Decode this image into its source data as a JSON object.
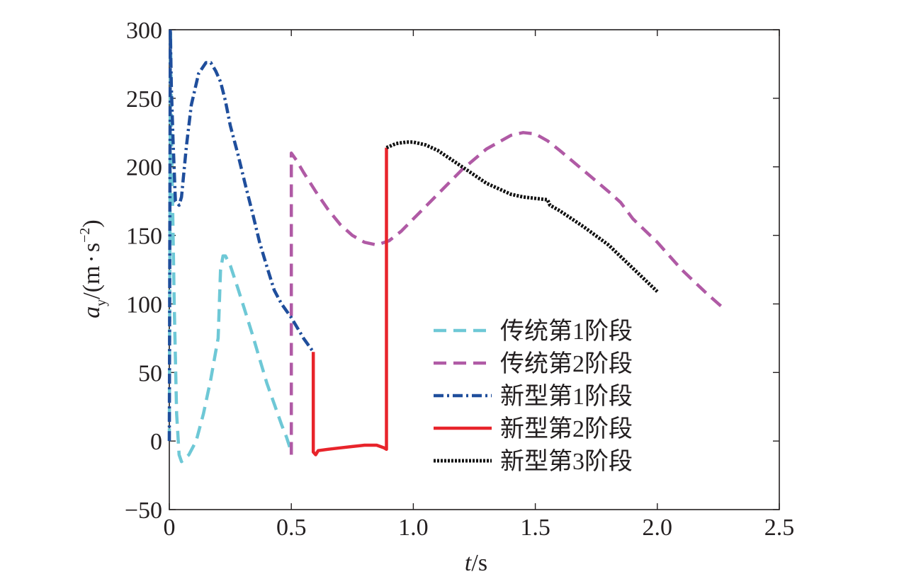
{
  "chart_data": {
    "type": "line",
    "title": "",
    "xlabel": "t/s",
    "ylabel": "a_y/(m·s⁻²)",
    "xlim": [
      0,
      2.5
    ],
    "ylim": [
      -50,
      300
    ],
    "xticks": [
      0,
      0.5,
      1.0,
      1.5,
      2.0,
      2.5
    ],
    "xtick_labels": [
      "0",
      "0.5",
      "1.0",
      "1.5",
      "2.0",
      "2.5"
    ],
    "yticks": [
      -50,
      0,
      50,
      100,
      150,
      200,
      250,
      300
    ],
    "ytick_labels": [
      "−50",
      "0",
      "50",
      "100",
      "150",
      "200",
      "250",
      "300"
    ],
    "grid": false,
    "legend_position": "bottom-right",
    "series": [
      {
        "name": "传统第1阶段",
        "color": "#6ec8d6",
        "style": "dashed",
        "x": [
          0,
          0.005,
          0.01,
          0.02,
          0.03,
          0.04,
          0.05,
          0.08,
          0.11,
          0.14,
          0.17,
          0.19,
          0.2,
          0.21,
          0.22,
          0.23,
          0.25,
          0.28,
          0.31,
          0.34,
          0.37,
          0.4,
          0.43,
          0.46,
          0.48,
          0.5
        ],
        "y": [
          0,
          300,
          210,
          100,
          20,
          -10,
          -15,
          -10,
          0,
          20,
          45,
          65,
          75,
          125,
          135,
          135,
          128,
          112,
          95,
          78,
          60,
          42,
          27,
          12,
          3,
          -8
        ]
      },
      {
        "name": "传统第2阶段",
        "color": "#b05aa5",
        "style": "dashed",
        "x": [
          0.5,
          0.5,
          0.52,
          0.55,
          0.6,
          0.65,
          0.7,
          0.75,
          0.8,
          0.85,
          0.9,
          0.95,
          1.0,
          1.1,
          1.2,
          1.3,
          1.4,
          1.45,
          1.5,
          1.55,
          1.6,
          1.7,
          1.8,
          1.85,
          1.9,
          2.0,
          2.1,
          2.2,
          2.27
        ],
        "y": [
          -10,
          210,
          205,
          196,
          182,
          169,
          158,
          150,
          145,
          143,
          146,
          153,
          162,
          180,
          198,
          213,
          223,
          225,
          224,
          219,
          212,
          197,
          182,
          174,
          162,
          145,
          125,
          108,
          97
        ]
      },
      {
        "name": "新型第1阶段",
        "color": "#1f4e9c",
        "style": "dashdot",
        "x": [
          0,
          0.004,
          0.008,
          0.015,
          0.025,
          0.04,
          0.05,
          0.07,
          0.09,
          0.12,
          0.15,
          0.17,
          0.19,
          0.21,
          0.23,
          0.25,
          0.28,
          0.31,
          0.34,
          0.37,
          0.4,
          0.43,
          0.46,
          0.5,
          0.55,
          0.59
        ],
        "y": [
          0,
          300,
          260,
          220,
          175,
          172,
          178,
          215,
          245,
          268,
          276,
          276,
          270,
          262,
          248,
          230,
          210,
          188,
          167,
          145,
          127,
          110,
          100,
          90,
          75,
          65
        ]
      },
      {
        "name": "新型第2阶段",
        "color": "#e8242b",
        "style": "solid",
        "x": [
          0.59,
          0.59,
          0.6,
          0.61,
          0.65,
          0.7,
          0.75,
          0.8,
          0.85,
          0.88,
          0.89,
          0.89
        ],
        "y": [
          65,
          -8,
          -10,
          -7,
          -6,
          -5,
          -4,
          -3,
          -3,
          -5,
          -6,
          214
        ]
      },
      {
        "name": "新型第3阶段",
        "color": "#111111",
        "style": "dotted",
        "x": [
          0.89,
          0.93,
          0.97,
          1.0,
          1.05,
          1.1,
          1.15,
          1.2,
          1.25,
          1.3,
          1.35,
          1.4,
          1.45,
          1.5,
          1.55,
          1.56,
          1.6,
          1.7,
          1.8,
          1.9,
          2.0
        ],
        "y": [
          214,
          217,
          218,
          218,
          216,
          212,
          206,
          200,
          194,
          188,
          184,
          180,
          178,
          177,
          176,
          172,
          168,
          156,
          143,
          126,
          109
        ]
      }
    ]
  }
}
